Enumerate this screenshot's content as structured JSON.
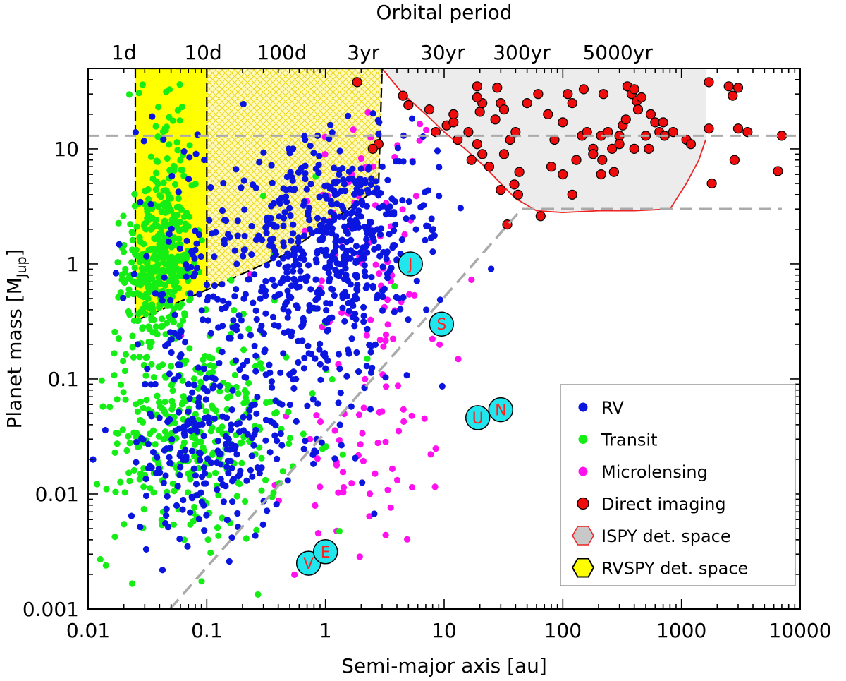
{
  "chart_data": {
    "type": "scatter",
    "title": "Orbital period",
    "xlabel": "Semi-major axis [au]",
    "ylabel_main": "Planet mass [M",
    "ylabel_sub": "Jup",
    "ylabel_close": "]",
    "x_scale": "log",
    "y_scale": "log",
    "xlim": [
      0.01,
      10000
    ],
    "ylim": [
      0.001,
      50
    ],
    "x_ticks": [
      {
        "value": 0.01,
        "label": "0.01"
      },
      {
        "value": 0.1,
        "label": "0.1"
      },
      {
        "value": 1,
        "label": "1"
      },
      {
        "value": 10,
        "label": "10"
      },
      {
        "value": 100,
        "label": "100"
      },
      {
        "value": 1000,
        "label": "1000"
      },
      {
        "value": 10000,
        "label": "10000"
      }
    ],
    "y_ticks": [
      {
        "value": 0.001,
        "label": "0.001"
      },
      {
        "value": 0.01,
        "label": "0.01"
      },
      {
        "value": 0.1,
        "label": "0.1"
      },
      {
        "value": 1,
        "label": "1"
      },
      {
        "value": 10,
        "label": "10"
      }
    ],
    "period_ticks": [
      {
        "a": 0.02,
        "label": "1d"
      },
      {
        "a": 0.093,
        "label": "10d"
      },
      {
        "a": 0.43,
        "label": "100d"
      },
      {
        "a": 2.08,
        "label": "3yr"
      },
      {
        "a": 9.7,
        "label": "30yr"
      },
      {
        "a": 45,
        "label": "300yr"
      },
      {
        "a": 290,
        "label": "5000yr"
      }
    ],
    "colors": {
      "RV": "#0a16e0",
      "Transit": "#14ee14",
      "Microlensing": "#ff10ee",
      "Direct imaging": "#ee0c0c",
      "ISPY": "#ececec",
      "ISPY_edge": "#ee2222",
      "RVSPY": "#ffff00",
      "RVSPY_hatch": "#ecd818",
      "solar": "#22e6ee",
      "solar_letter": "#ff2020",
      "guide": "#aaaaaa"
    },
    "series": [
      {
        "name": "RV",
        "groups": [
          {
            "n": 260,
            "cx": 1.3,
            "sx": 0.35,
            "cy": 2.0,
            "sy": 0.32
          },
          {
            "n": 230,
            "cx": 0.9,
            "sx": 0.45,
            "cy": 0.5,
            "sy": 0.6
          },
          {
            "n": 130,
            "cx": 0.3,
            "sx": 0.45,
            "cy": 0.7,
            "sy": 0.7
          },
          {
            "n": 200,
            "cx": 0.1,
            "sx": 0.32,
            "cy": 0.025,
            "sy": 0.4
          },
          {
            "n": 60,
            "cx": 0.06,
            "sx": 0.25,
            "cy": 0.8,
            "sy": 0.8
          },
          {
            "n": 50,
            "cx": 3.0,
            "sx": 0.3,
            "cy": 5.0,
            "sy": 0.35
          }
        ]
      },
      {
        "name": "Transit",
        "groups": [
          {
            "n": 360,
            "cx": 0.04,
            "sx": 0.14,
            "cy": 1.0,
            "sy": 0.35
          },
          {
            "n": 230,
            "cx": 0.09,
            "sx": 0.35,
            "cy": 0.03,
            "sy": 0.45
          },
          {
            "n": 90,
            "cx": 0.035,
            "sx": 0.25,
            "cy": 0.05,
            "sy": 0.6
          },
          {
            "n": 45,
            "cx": 0.045,
            "sx": 0.12,
            "cy": 12,
            "sy": 0.4
          },
          {
            "n": 35,
            "cx": 0.3,
            "sx": 0.5,
            "cy": 0.2,
            "sy": 0.8
          }
        ]
      },
      {
        "name": "Microlensing",
        "groups": [
          {
            "n": 55,
            "cx": 2.5,
            "sx": 0.3,
            "cy": 2.0,
            "sy": 0.6
          },
          {
            "n": 60,
            "cx": 2.5,
            "sx": 0.4,
            "cy": 0.1,
            "sy": 0.8
          },
          {
            "n": 20,
            "cx": 1.3,
            "sx": 0.35,
            "cy": 0.01,
            "sy": 0.4
          }
        ]
      }
    ],
    "direct_imaging": [
      [
        1.85,
        38
      ],
      [
        2.8,
        11
      ],
      [
        2.5,
        10
      ],
      [
        4.5,
        29
      ],
      [
        5.0,
        24
      ],
      [
        7.5,
        22
      ],
      [
        8.5,
        14
      ],
      [
        10.5,
        16
      ],
      [
        12,
        17
      ],
      [
        13,
        12
      ],
      [
        12,
        20
      ],
      [
        16,
        14
      ],
      [
        19,
        35
      ],
      [
        20,
        21
      ],
      [
        21,
        25
      ],
      [
        19,
        28
      ],
      [
        28,
        34
      ],
      [
        30,
        25
      ],
      [
        32,
        22
      ],
      [
        27,
        18
      ],
      [
        30,
        4.4
      ],
      [
        39,
        4.9
      ],
      [
        42,
        4.0
      ],
      [
        34,
        2.2
      ],
      [
        65,
        2.6
      ],
      [
        32,
        9
      ],
      [
        36,
        12
      ],
      [
        40,
        14
      ],
      [
        43,
        6.3
      ],
      [
        21,
        9
      ],
      [
        17,
        8
      ],
      [
        19,
        11
      ],
      [
        24,
        7
      ],
      [
        50,
        25
      ],
      [
        62,
        30
      ],
      [
        75,
        20
      ],
      [
        85,
        12
      ],
      [
        80,
        7
      ],
      [
        100,
        17
      ],
      [
        110,
        30
      ],
      [
        120,
        25
      ],
      [
        130,
        8
      ],
      [
        145,
        13
      ],
      [
        150,
        33
      ],
      [
        160,
        14
      ],
      [
        180,
        10
      ],
      [
        220,
        30
      ],
      [
        210,
        13
      ],
      [
        215,
        8
      ],
      [
        240,
        14
      ],
      [
        260,
        10
      ],
      [
        270,
        6.3
      ],
      [
        300,
        13
      ],
      [
        320,
        16
      ],
      [
        340,
        18
      ],
      [
        350,
        35
      ],
      [
        380,
        30
      ],
      [
        400,
        33
      ],
      [
        420,
        26
      ],
      [
        430,
        22
      ],
      [
        460,
        28
      ],
      [
        500,
        13
      ],
      [
        530,
        10
      ],
      [
        550,
        20
      ],
      [
        600,
        17
      ],
      [
        650,
        14
      ],
      [
        720,
        13
      ],
      [
        700,
        17
      ],
      [
        850,
        14
      ],
      [
        1100,
        12
      ],
      [
        1200,
        11
      ],
      [
        1700,
        38
      ],
      [
        1700,
        15
      ],
      [
        1800,
        5
      ],
      [
        2500,
        35
      ],
      [
        2700,
        29
      ],
      [
        3000,
        34
      ],
      [
        3000,
        15
      ],
      [
        3600,
        14
      ],
      [
        2800,
        8
      ],
      [
        6500,
        6.4
      ],
      [
        7000,
        13
      ],
      [
        210,
        6
      ],
      [
        120,
        4
      ],
      [
        100,
        6
      ],
      [
        180,
        9
      ],
      [
        400,
        10
      ],
      [
        300,
        11
      ]
    ],
    "ispy_boundary": [
      [
        3.0,
        50
      ],
      [
        4.5,
        30
      ],
      [
        7,
        20
      ],
      [
        10,
        14
      ],
      [
        15,
        10
      ],
      [
        22,
        7
      ],
      [
        30,
        5
      ],
      [
        40,
        3.7
      ],
      [
        60,
        2.9
      ],
      [
        100,
        2.8
      ],
      [
        200,
        2.9
      ],
      [
        400,
        2.9
      ],
      [
        800,
        3.0
      ],
      [
        1100,
        5
      ],
      [
        1400,
        8
      ],
      [
        1600,
        12
      ],
      [
        1600,
        50
      ]
    ],
    "rvspy_region": [
      [
        0.025,
        50
      ],
      [
        0.025,
        0.32
      ],
      [
        0.11,
        0.62
      ],
      [
        0.45,
        1.2
      ],
      [
        2.8,
        4.6
      ],
      [
        3.0,
        50
      ]
    ],
    "rvspy_divider": [
      [
        0.1,
        50
      ],
      [
        0.1,
        0.6
      ]
    ],
    "guide_diag": [
      [
        0.049,
        0.001
      ],
      [
        45,
        3
      ]
    ],
    "guide_ispy_floor": [
      [
        45,
        3
      ],
      [
        7000,
        3
      ]
    ],
    "deuterium_line": 13,
    "solar_system": [
      {
        "letter": "V",
        "a": 0.72,
        "m": 0.0025
      },
      {
        "letter": "E",
        "a": 1.0,
        "m": 0.00315
      },
      {
        "letter": "J",
        "a": 5.2,
        "m": 1.0
      },
      {
        "letter": "S",
        "a": 9.5,
        "m": 0.3
      },
      {
        "letter": "U",
        "a": 19.2,
        "m": 0.046
      },
      {
        "letter": "N",
        "a": 30.0,
        "m": 0.054
      }
    ],
    "legend": [
      {
        "label": "RV",
        "kind": "dot",
        "color_key": "RV"
      },
      {
        "label": "Transit",
        "kind": "dot",
        "color_key": "Transit"
      },
      {
        "label": "Microlensing",
        "kind": "dot",
        "color_key": "Microlensing"
      },
      {
        "label": "Direct imaging",
        "kind": "dot-edge",
        "color_key": "Direct imaging"
      },
      {
        "label": "ISPY det. space",
        "kind": "hex-ispy",
        "color_key": "ISPY"
      },
      {
        "label": "RVSPY det. space",
        "kind": "hex-rvspy",
        "color_key": "RVSPY"
      }
    ],
    "legend_position": "bottom-right"
  }
}
